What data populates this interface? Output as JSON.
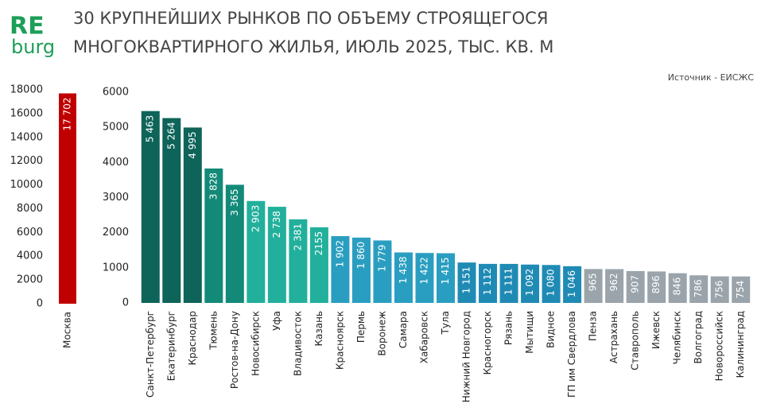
{
  "header": {
    "logo_top": "RE",
    "logo_bottom": "burg",
    "title": [
      "30 КРУПНЕЙШИХ РЫНКОВ ПО ОБЪЕМУ СТРОЯЩЕГОСЯ",
      "МНОГОКВАРТИРНОГО ЖИЛЬЯ, ИЮЛЬ 2025, ТЫС. КВ. М"
    ],
    "source": "Источник - ЕИСЖС"
  },
  "chart_data": [
    {
      "type": "bar",
      "categories": [
        "Москва"
      ],
      "values": [
        17702
      ],
      "value_labels": [
        "17 702"
      ],
      "colors": [
        "#c00000"
      ],
      "ylim": [
        0,
        18000
      ],
      "yticks": [
        0,
        2000,
        4000,
        6000,
        8000,
        10000,
        12000,
        14000,
        16000,
        18000
      ]
    },
    {
      "type": "bar",
      "categories": [
        "Санкт-Петербург",
        "Екатеринбург",
        "Краснодар",
        "Тюмень",
        "Ростов-на-Дону",
        "Новосибирск",
        "Уфа",
        "Владивосток",
        "Казань",
        "Красноярск",
        "Пермь",
        "Воронеж",
        "Самара",
        "Хабаровск",
        "Тула",
        "Нижний Новгород",
        "Красногорск",
        "Рязань",
        "Мытищи",
        "Видное",
        "ГП им Свердлова",
        "Пенза",
        "Астрахань",
        "Ставрополь",
        "Ижевск",
        "Челябинск",
        "Волгоград",
        "Новороссийск",
        "Калининград"
      ],
      "values": [
        5463,
        5264,
        4995,
        3828,
        3365,
        2903,
        2738,
        2381,
        2155,
        1902,
        1860,
        1779,
        1438,
        1422,
        1415,
        1151,
        1112,
        1111,
        1092,
        1080,
        1046,
        965,
        962,
        907,
        896,
        846,
        786,
        756,
        754
      ],
      "value_labels": [
        "5 463",
        "5 264",
        "4 995",
        "3 828",
        "3 365",
        "2 903",
        "2 738",
        "2 381",
        "2155",
        "1 902",
        "1 860",
        "1 779",
        "1 438",
        "1 422",
        "1 415",
        "1 151",
        "1 112",
        "1 111",
        "1 092",
        "1 080",
        "1 046",
        "965",
        "962",
        "907",
        "896",
        "846",
        "786",
        "756",
        "754"
      ],
      "colors": [
        "#0e6459",
        "#0e6459",
        "#0e6459",
        "#138a78",
        "#138a78",
        "#22b09c",
        "#22b09c",
        "#22b09c",
        "#22b09c",
        "#2a9ec0",
        "#2a9ec0",
        "#2a9ec0",
        "#2a9ec0",
        "#2a9ec0",
        "#2a9ec0",
        "#1f8bb5",
        "#1f8bb5",
        "#1f8bb5",
        "#1f8bb5",
        "#1f8bb5",
        "#1f8bb5",
        "#9aa4aa",
        "#9aa4aa",
        "#9aa4aa",
        "#9aa4aa",
        "#9aa4aa",
        "#9aa4aa",
        "#9aa4aa",
        "#9aa4aa"
      ],
      "ylim": [
        0,
        6000
      ],
      "yticks": [
        0,
        1000,
        2000,
        3000,
        4000,
        5000,
        6000
      ]
    }
  ]
}
